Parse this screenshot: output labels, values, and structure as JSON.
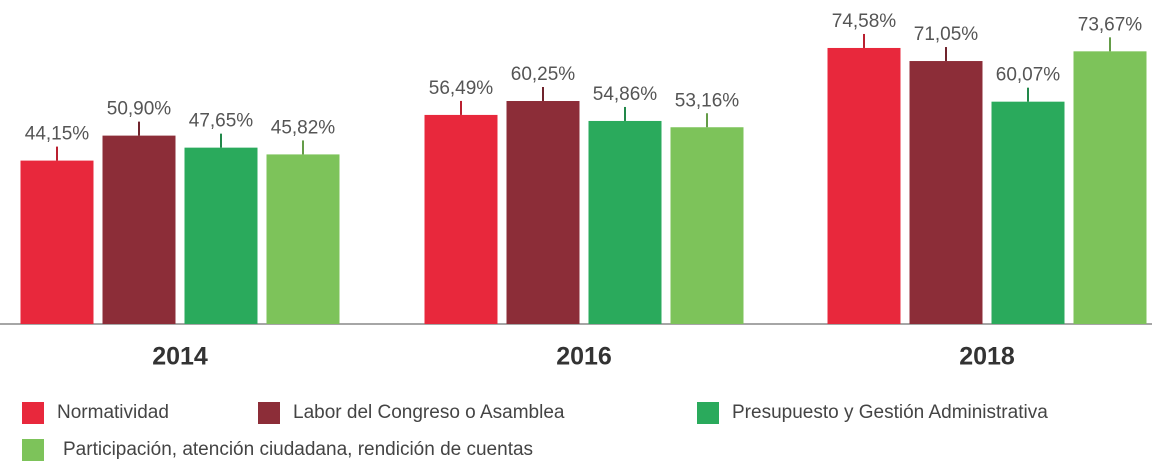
{
  "chart_data": {
    "type": "bar",
    "categories": [
      "2014",
      "2016",
      "2018"
    ],
    "series": [
      {
        "name": "Normatividad",
        "color": "#e8283c",
        "values": [
          44.15,
          56.49,
          74.58
        ],
        "value_labels": [
          "44,15%",
          "56,49%",
          "74,58%"
        ]
      },
      {
        "name": "Labor del Congreso o Asamblea",
        "color": "#8c2d38",
        "values": [
          50.9,
          60.25,
          71.05
        ],
        "value_labels": [
          "50,90%",
          "60,25%",
          "71,05%"
        ]
      },
      {
        "name": "Presupuesto y Gestión Administrativa",
        "color": "#2aaa5c",
        "values": [
          47.65,
          54.86,
          60.07
        ],
        "value_labels": [
          "47,65%",
          "54,86%",
          "60,07%"
        ]
      },
      {
        "name": "Participación, atención ciudadana, rendición de cuentas",
        "color": "#7dc35a",
        "values": [
          45.82,
          53.16,
          73.67
        ],
        "value_labels": [
          "45,82%",
          "53,16%",
          "73,67%"
        ]
      }
    ],
    "ylim": [
      0,
      87
    ],
    "grid": false
  }
}
